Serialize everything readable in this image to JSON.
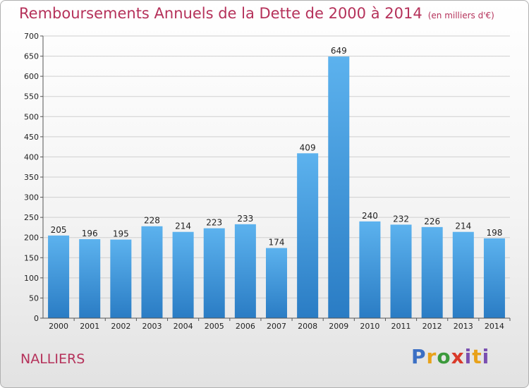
{
  "chart_data": {
    "type": "bar",
    "title": "Remboursements Annuels de la Dette de 2000 à 2014",
    "unit_label": "(en milliers d'€)",
    "xlabel": "",
    "ylabel": "",
    "categories": [
      "2000",
      "2001",
      "2002",
      "2003",
      "2004",
      "2005",
      "2006",
      "2007",
      "2008",
      "2009",
      "2010",
      "2011",
      "2012",
      "2013",
      "2014"
    ],
    "values": [
      205,
      196,
      195,
      228,
      214,
      223,
      233,
      174,
      409,
      649,
      240,
      232,
      226,
      214,
      198
    ],
    "ylim": [
      0,
      700
    ],
    "yticks": [
      0,
      50,
      100,
      150,
      200,
      250,
      300,
      350,
      400,
      450,
      500,
      550,
      600,
      650,
      700
    ],
    "grid": true,
    "bar_color": "#3d93d8"
  },
  "commune": "NALLIERS",
  "logo": {
    "text": "Proxiti"
  }
}
